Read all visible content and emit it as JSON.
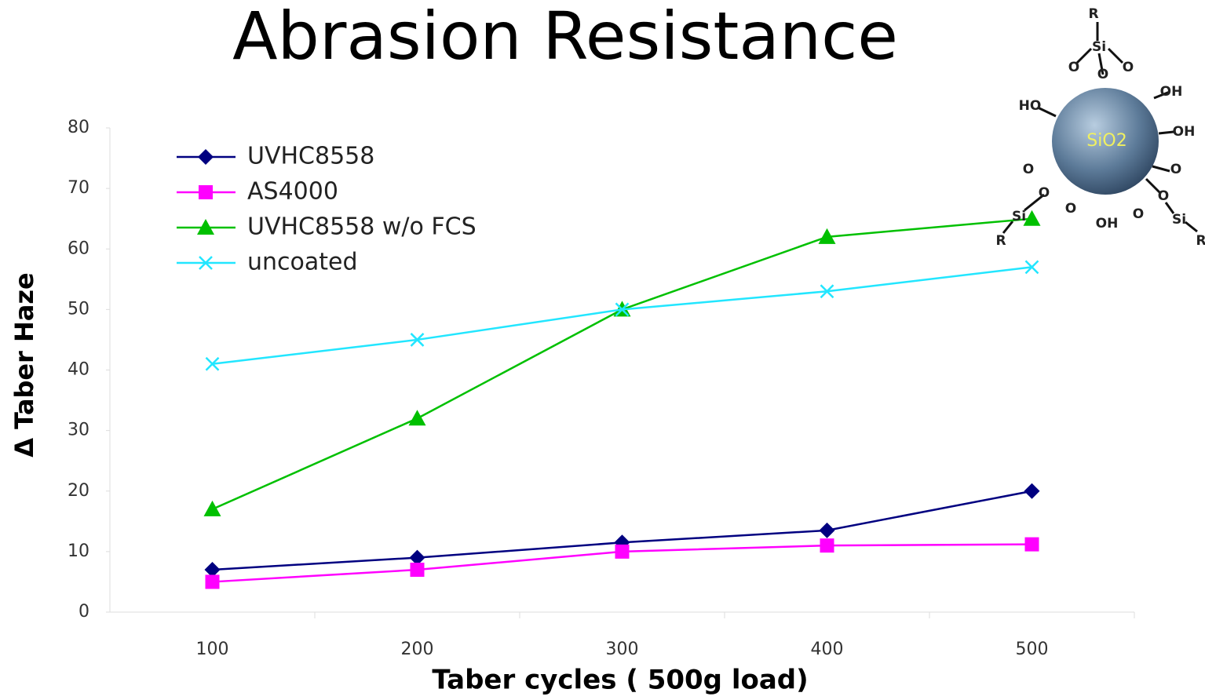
{
  "chart_data": {
    "type": "line",
    "title": "Abrasion Resistance",
    "x_label": "Taber cycles ( 500g load)",
    "y_label": "Δ Taber Haze",
    "categories": [
      "100",
      "200",
      "300",
      "400",
      "500"
    ],
    "series": [
      {
        "name": "UVHC8558",
        "color": "#000080",
        "marker": "diamond",
        "values": [
          7,
          9,
          11.5,
          13.5,
          20
        ]
      },
      {
        "name": "AS4000",
        "color": "#ff00ff",
        "marker": "square",
        "values": [
          5,
          7,
          10,
          11,
          11.2
        ]
      },
      {
        "name": "UVHC8558 w/o  FCS",
        "color": "#00c000",
        "marker": "triangle",
        "values": [
          17,
          32,
          50,
          62,
          65
        ]
      },
      {
        "name": "uncoated",
        "color": "#22e6ff",
        "marker": "x",
        "values": [
          41,
          45,
          50,
          53,
          57
        ]
      }
    ],
    "ylim": [
      0,
      80
    ],
    "yticks": [
      0,
      10,
      20,
      30,
      40,
      50,
      60,
      70,
      80
    ],
    "grid": false,
    "legend": "upper-left"
  },
  "diagram": {
    "center": "SiO2",
    "labels": [
      "R",
      "Si",
      "O",
      "O",
      "O",
      "HO",
      "OH",
      "OH",
      "O",
      "O",
      "O",
      "Si",
      "R",
      "O",
      "OH",
      "O",
      "O",
      "Si",
      "R"
    ]
  }
}
